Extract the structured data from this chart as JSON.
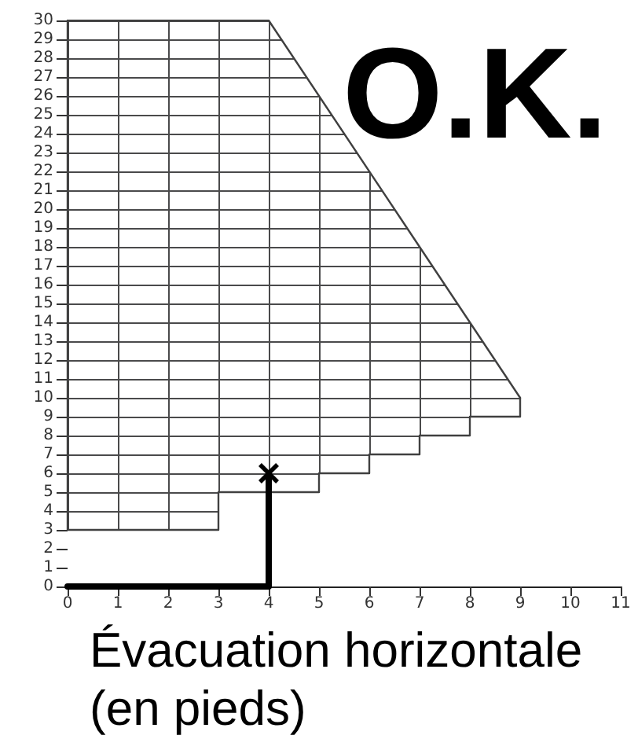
{
  "chart_data": {
    "type": "line",
    "xlabel": "Évacuation horizontale (en pieds)",
    "annotations": [
      "O.K."
    ],
    "xlim": [
      0,
      11
    ],
    "xticks": [
      0,
      1,
      2,
      3,
      4,
      5,
      6,
      7,
      8,
      9,
      10,
      11
    ],
    "ylim": [
      0,
      30
    ],
    "yticks": [
      0,
      1,
      2,
      3,
      4,
      5,
      6,
      7,
      8,
      9,
      10,
      11,
      12,
      13,
      14,
      15,
      16,
      17,
      18,
      19,
      20,
      21,
      22,
      23,
      24,
      25,
      26,
      27,
      28,
      29,
      30
    ],
    "grid": true,
    "series": [
      {
        "color": "#404040",
        "x": [
          0,
          4,
          9
        ],
        "values": [
          30,
          30,
          10
        ],
        "marker": "none",
        "line_style": "solid"
      },
      {
        "type": "step",
        "color": "#404040",
        "x": [
          0,
          0,
          3,
          5,
          6,
          7,
          8,
          9
        ],
        "values": [
          30,
          3,
          5,
          6,
          7,
          8,
          9,
          10
        ],
        "marker": "none",
        "line_style": "solid"
      },
      {
        "type": "line",
        "color": "#000000",
        "x": [
          0,
          4,
          4
        ],
        "values": [
          0,
          0,
          6
        ],
        "marker": "none",
        "line_style": "solid"
      },
      {
        "type": "scatter",
        "color": "#000000",
        "x": [
          4
        ],
        "values": [
          6
        ],
        "marker": "cross"
      }
    ]
  }
}
